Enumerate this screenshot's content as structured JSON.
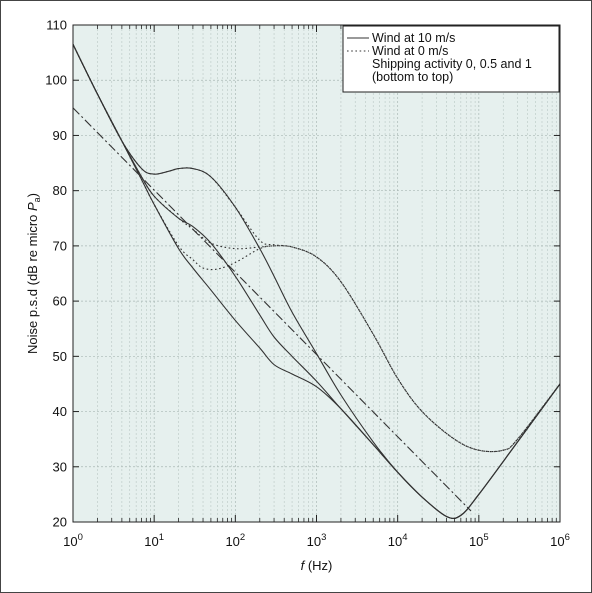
{
  "chart_data": {
    "type": "line",
    "title": "",
    "xlabel": "f (Hz)",
    "xlabel_italic_part": "f",
    "xlabel_rest": " (Hz)",
    "ylabel": "Noise p.s.d (dB re micro Pa)",
    "x_scale": "log",
    "xlim": [
      1,
      1000000
    ],
    "ylim": [
      20,
      110
    ],
    "y_ticks": [
      20,
      30,
      40,
      50,
      60,
      70,
      80,
      90,
      100,
      110
    ],
    "x_tick_labels": [
      {
        "base": "10",
        "exp": "0"
      },
      {
        "base": "10",
        "exp": "1"
      },
      {
        "base": "10",
        "exp": "2"
      },
      {
        "base": "10",
        "exp": "3"
      },
      {
        "base": "10",
        "exp": "4"
      },
      {
        "base": "10",
        "exp": "5"
      },
      {
        "base": "10",
        "exp": "6"
      }
    ],
    "grid": true,
    "plot_background": "#e6f0ee",
    "legend_position": "top-right",
    "legend": [
      {
        "label": "Wind at 10 m/s",
        "style": "solid"
      },
      {
        "label": "Wind at 0 m/s",
        "style": "dotted"
      },
      {
        "label": "Shipping activity 0, 0.5 and 1",
        "style": "none"
      },
      {
        "label": "(bottom to top)",
        "style": "none"
      }
    ],
    "series": [
      {
        "group": "wind-10-shipping-0",
        "style": "solid",
        "x": [
          1,
          2,
          4,
          7,
          10,
          20,
          30,
          50,
          100,
          200,
          300,
          500,
          1000,
          2000,
          5000,
          10000,
          20000,
          40000,
          60000,
          100000,
          300000,
          1000000
        ],
        "y": [
          106.5,
          97.5,
          89,
          82,
          77.5,
          69.5,
          66,
          62,
          56.5,
          51.5,
          48.5,
          46.8,
          44.5,
          40.5,
          34,
          29,
          24.5,
          21,
          21.2,
          25,
          34.5,
          45
        ]
      },
      {
        "group": "wind-10-shipping-0.5",
        "style": "solid",
        "x": [
          1,
          2,
          4,
          7,
          10,
          20,
          30,
          50,
          100,
          200,
          300,
          500,
          1000,
          2000,
          5000,
          10000,
          20000,
          40000,
          60000,
          100000,
          300000,
          1000000
        ],
        "y": [
          106.5,
          97.5,
          89,
          82.5,
          79,
          75,
          73.5,
          70.5,
          64.5,
          57.5,
          53.5,
          50,
          45.5,
          40.5,
          34,
          29,
          24.5,
          21,
          21.2,
          25,
          34.5,
          45
        ]
      },
      {
        "group": "wind-10-shipping-1",
        "style": "solid",
        "x": [
          1,
          2,
          4,
          7,
          10,
          15,
          20,
          30,
          50,
          100,
          200,
          300,
          500,
          1000,
          2000,
          5000,
          10000,
          20000,
          40000,
          60000,
          100000,
          300000,
          1000000
        ],
        "y": [
          106.5,
          97.5,
          89,
          84,
          83,
          83.5,
          84,
          84,
          82.5,
          77,
          69.5,
          64.5,
          58,
          50.5,
          43,
          34.5,
          29,
          24.5,
          21,
          21.2,
          25,
          34.5,
          45
        ]
      },
      {
        "group": "wind-0-shipping-0",
        "style": "dotted",
        "x": [
          1,
          2,
          4,
          7,
          10,
          20,
          30,
          40,
          60,
          100,
          200,
          300,
          500,
          1000,
          2000,
          5000,
          10000,
          20000,
          50000,
          100000,
          200000,
          300000,
          1000000
        ],
        "y": [
          106.5,
          97.5,
          89,
          82,
          77.5,
          70,
          67.5,
          66,
          65.8,
          67,
          69.5,
          70,
          69.8,
          68,
          63.5,
          54,
          46,
          40,
          35,
          33,
          33,
          35,
          45
        ]
      },
      {
        "group": "wind-0-shipping-0.5",
        "style": "dotted",
        "x": [
          1,
          2,
          4,
          7,
          10,
          20,
          30,
          50,
          100,
          200,
          300,
          500,
          1000,
          2000,
          5000,
          10000,
          20000,
          50000,
          100000,
          200000,
          300000,
          1000000
        ],
        "y": [
          106.5,
          97.5,
          89,
          82.5,
          79,
          75,
          73,
          70.5,
          69.5,
          69.8,
          70,
          69.8,
          68,
          63.5,
          54,
          46,
          40,
          35,
          33,
          33,
          35,
          45
        ]
      },
      {
        "group": "wind-0-shipping-1",
        "style": "dotted",
        "x": [
          1,
          2,
          4,
          7,
          10,
          15,
          20,
          30,
          50,
          100,
          200,
          300,
          500,
          1000,
          2000,
          5000,
          10000,
          20000,
          50000,
          100000,
          200000,
          300000,
          1000000
        ],
        "y": [
          106.5,
          97.5,
          89,
          84,
          83,
          83.5,
          84,
          84,
          82.5,
          77,
          71,
          70.2,
          69.8,
          68,
          63.5,
          54,
          46,
          40,
          35,
          33,
          33,
          35,
          45
        ]
      },
      {
        "group": "trend-line",
        "style": "dashdot",
        "x": [
          1,
          80000
        ],
        "y": [
          95,
          22
        ]
      }
    ]
  }
}
